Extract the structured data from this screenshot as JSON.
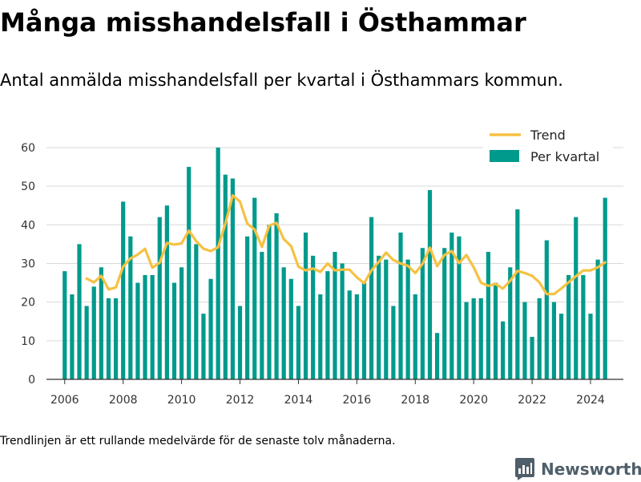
{
  "title": "Många misshandelsfall i Östhammar",
  "subtitle": "Antal anmälda misshandelsfall per kvartal i Östhammars kommun.",
  "footnote": "Trendlinjen är ett rullande medelvärde för de senaste tolv månaderna.",
  "logo": {
    "text": "Newsworthy",
    "icon": "newsworthy-logo-icon"
  },
  "colors": {
    "bar": "#009a8c",
    "trend": "#f6c142",
    "grid": "#d9d9d9",
    "axis": "#333333",
    "logo": "#4f5f6a"
  },
  "chart_data": {
    "type": "bar",
    "ylim": [
      0,
      60
    ],
    "yticks": [
      "0",
      "10",
      "20",
      "30",
      "40",
      "50",
      "60"
    ],
    "xlim": [
      2005.375,
      2025.125
    ],
    "xticks": [
      "2006",
      "2008",
      "2010",
      "2012",
      "2014",
      "2016",
      "2018",
      "2020",
      "2022",
      "2024"
    ],
    "grid": true,
    "legend_position": "top-right",
    "legend": [
      "Trend",
      "Per kvartal"
    ],
    "series": [
      {
        "name": "Per kvartal",
        "type": "bar",
        "x": [
          "2006 Q1",
          "2006 Q2",
          "2006 Q3",
          "2006 Q4",
          "2007 Q1",
          "2007 Q2",
          "2007 Q3",
          "2007 Q4",
          "2008 Q1",
          "2008 Q2",
          "2008 Q3",
          "2008 Q4",
          "2009 Q1",
          "2009 Q2",
          "2009 Q3",
          "2009 Q4",
          "2010 Q1",
          "2010 Q2",
          "2010 Q3",
          "2010 Q4",
          "2011 Q1",
          "2011 Q2",
          "2011 Q3",
          "2011 Q4",
          "2012 Q1",
          "2012 Q2",
          "2012 Q3",
          "2012 Q4",
          "2013 Q1",
          "2013 Q2",
          "2013 Q3",
          "2013 Q4",
          "2014 Q1",
          "2014 Q2",
          "2014 Q3",
          "2014 Q4",
          "2015 Q1",
          "2015 Q2",
          "2015 Q3",
          "2015 Q4",
          "2016 Q1",
          "2016 Q2",
          "2016 Q3",
          "2016 Q4",
          "2017 Q1",
          "2017 Q2",
          "2017 Q3",
          "2017 Q4",
          "2018 Q1",
          "2018 Q2",
          "2018 Q3",
          "2018 Q4",
          "2019 Q1",
          "2019 Q2",
          "2019 Q3",
          "2019 Q4",
          "2020 Q1",
          "2020 Q2",
          "2020 Q3",
          "2020 Q4",
          "2021 Q1",
          "2021 Q2",
          "2021 Q3",
          "2021 Q4",
          "2022 Q1",
          "2022 Q2",
          "2022 Q3",
          "2022 Q4",
          "2023 Q1",
          "2023 Q2",
          "2023 Q3",
          "2023 Q4",
          "2024 Q1",
          "2024 Q2",
          "2024 Q3"
        ],
        "values": [
          28,
          22,
          35,
          19,
          24,
          29,
          21,
          21,
          46,
          37,
          25,
          27,
          27,
          42,
          45,
          25,
          29,
          55,
          35,
          17,
          26,
          60,
          53,
          52,
          19,
          37,
          47,
          33,
          40,
          43,
          29,
          26,
          19,
          38,
          32,
          22,
          28,
          33,
          30,
          23,
          22,
          25,
          42,
          32,
          31,
          19,
          38,
          31,
          22,
          34,
          49,
          12,
          34,
          38,
          37,
          20,
          21,
          21,
          33,
          25,
          15,
          29,
          44,
          20,
          11,
          21,
          36,
          20,
          17,
          27,
          42,
          27,
          17,
          31,
          47
        ]
      },
      {
        "name": "Trend",
        "type": "line",
        "x": [
          "2006 Q4",
          "2007 Q1",
          "2007 Q2",
          "2007 Q3",
          "2007 Q4",
          "2008 Q1",
          "2008 Q2",
          "2008 Q3",
          "2008 Q4",
          "2009 Q1",
          "2009 Q2",
          "2009 Q3",
          "2009 Q4",
          "2010 Q1",
          "2010 Q2",
          "2010 Q3",
          "2010 Q4",
          "2011 Q1",
          "2011 Q2",
          "2011 Q3",
          "2011 Q4",
          "2012 Q1",
          "2012 Q2",
          "2012 Q3",
          "2012 Q4",
          "2013 Q1",
          "2013 Q2",
          "2013 Q3",
          "2013 Q4",
          "2014 Q1",
          "2014 Q2",
          "2014 Q3",
          "2014 Q4",
          "2015 Q1",
          "2015 Q2",
          "2015 Q3",
          "2015 Q4",
          "2016 Q1",
          "2016 Q2",
          "2016 Q3",
          "2016 Q4",
          "2017 Q1",
          "2017 Q2",
          "2017 Q3",
          "2017 Q4",
          "2018 Q1",
          "2018 Q2",
          "2018 Q3",
          "2018 Q4",
          "2019 Q1",
          "2019 Q2",
          "2019 Q3",
          "2019 Q4",
          "2020 Q1",
          "2020 Q2",
          "2020 Q3",
          "2020 Q4",
          "2021 Q1",
          "2021 Q2",
          "2021 Q3",
          "2021 Q4",
          "2022 Q1",
          "2022 Q2",
          "2022 Q3",
          "2022 Q4",
          "2023 Q1",
          "2023 Q2",
          "2023 Q3",
          "2023 Q4",
          "2024 Q1",
          "2024 Q2",
          "2024 Q3"
        ],
        "values": [
          26.1,
          25.1,
          26.8,
          23.3,
          23.8,
          29.2,
          31.3,
          32.3,
          33.8,
          28.9,
          30.2,
          35.3,
          34.9,
          35.2,
          38.5,
          35.8,
          33.8,
          33.2,
          34.2,
          40.3,
          47.6,
          46.0,
          40.3,
          38.8,
          34.3,
          39.8,
          40.5,
          36.3,
          34.5,
          29.2,
          28.2,
          28.7,
          27.8,
          30.0,
          28.2,
          28.4,
          28.4,
          26.4,
          24.9,
          28.2,
          30.4,
          32.8,
          30.9,
          30.0,
          29.4,
          27.5,
          29.9,
          34.1,
          29.3,
          32.2,
          33.2,
          30.1,
          32.2,
          29.0,
          25.0,
          24.2,
          24.7,
          23.5,
          25.5,
          28.1,
          27.5,
          26.8,
          25.1,
          22.1,
          22.1,
          23.5,
          25.1,
          26.7,
          28.2,
          28.2,
          29.0,
          30.3
        ]
      }
    ]
  }
}
